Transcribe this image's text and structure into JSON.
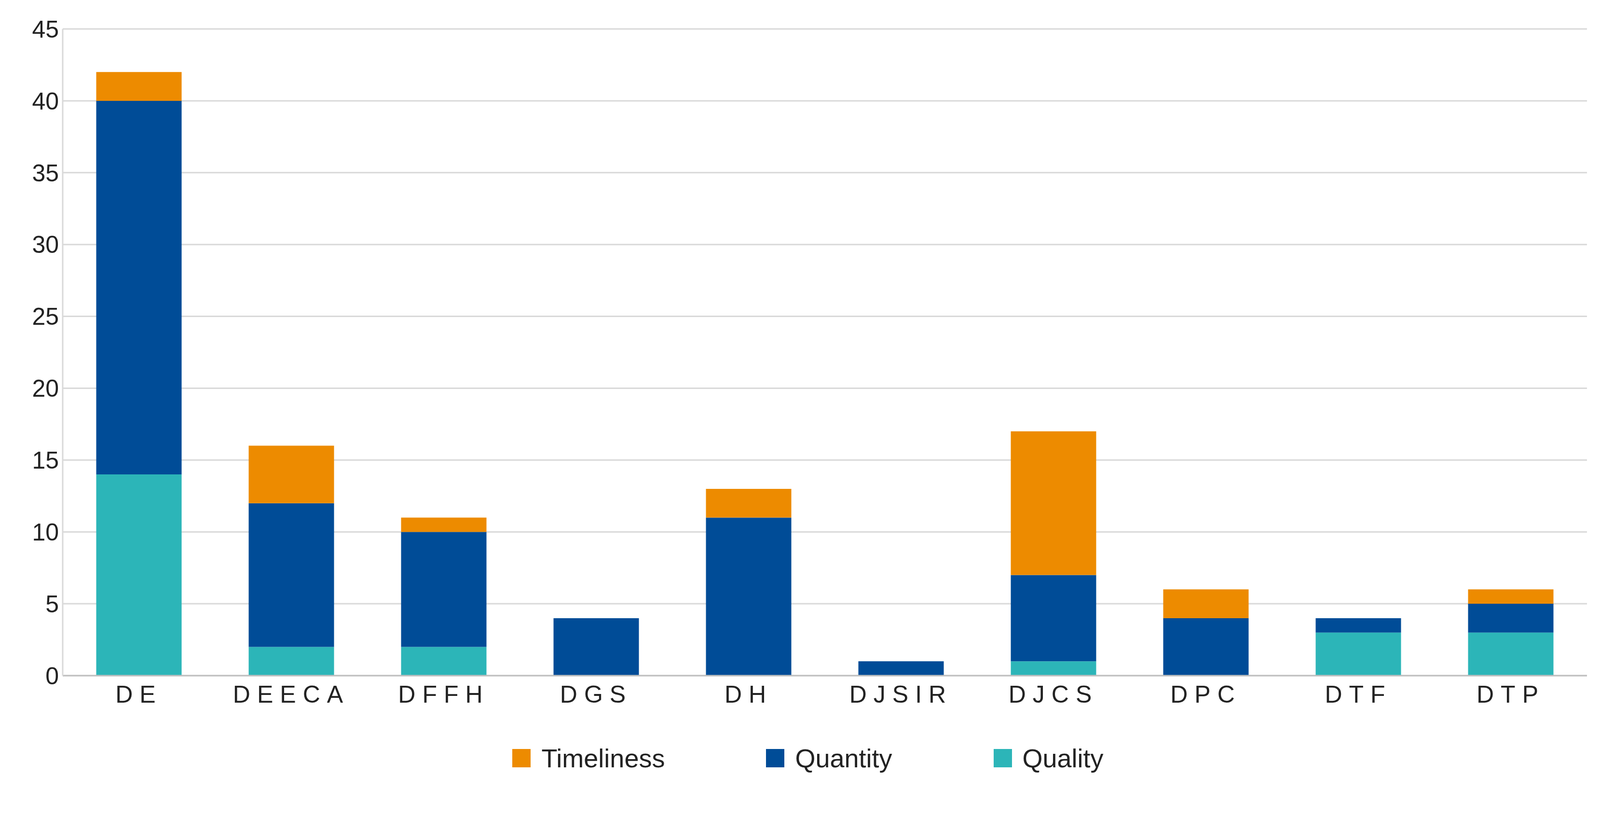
{
  "chart_data": {
    "type": "bar",
    "stacked": true,
    "grid": true,
    "legend": "bottom",
    "categories": [
      "DE",
      "DEECA",
      "DFFH",
      "DGS",
      "DH",
      "DJSIR",
      "DJCS",
      "DPC",
      "DTF",
      "DTP"
    ],
    "series": [
      {
        "name": "Quality",
        "color": "#2cb5b8",
        "values": [
          14,
          2,
          2,
          0,
          0,
          0,
          1,
          0,
          3,
          3
        ]
      },
      {
        "name": "Quantity",
        "color": "#004c97",
        "values": [
          26,
          10,
          8,
          4,
          11,
          1,
          6,
          4,
          1,
          2
        ]
      },
      {
        "name": "Timeliness",
        "color": "#ed8b00",
        "values": [
          2,
          4,
          1,
          0,
          2,
          0,
          10,
          2,
          0,
          1
        ]
      }
    ],
    "ylim": [
      0,
      45
    ],
    "yticks": [
      0,
      5,
      10,
      15,
      20,
      25,
      30,
      35,
      40,
      45
    ]
  }
}
